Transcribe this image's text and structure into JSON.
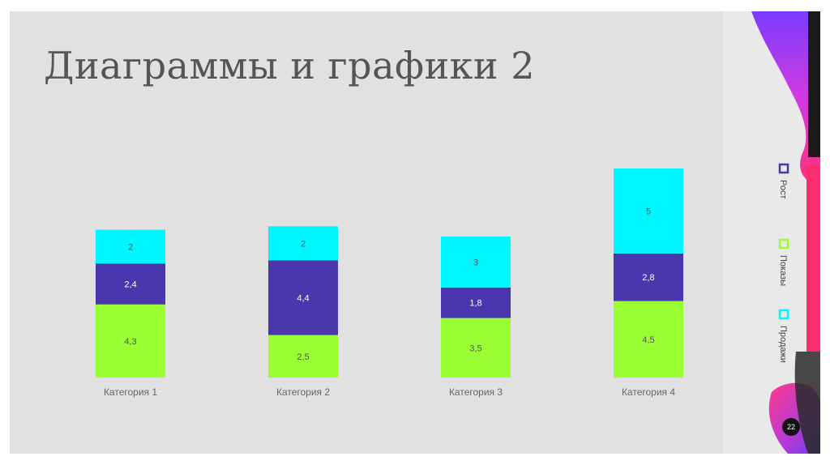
{
  "slide": {
    "title": "Диаграммы и графики 2",
    "page_number": "22"
  },
  "colors": {
    "background": "#e1e1e1",
    "title": "#555555",
    "rost": "#4b37ad",
    "pokazy": "#99ff33",
    "prodazhi": "#00f7ff",
    "label": "#555555"
  },
  "chart_data": {
    "type": "bar",
    "stacked": true,
    "categories": [
      "Категория 1",
      "Категория 2",
      "Категория 3",
      "Категория 4"
    ],
    "series": [
      {
        "name": "Показы",
        "values": [
          4.3,
          2.5,
          3.5,
          4.5
        ],
        "labels": [
          "4,3",
          "2,5",
          "3,5",
          "4,5"
        ],
        "color": "#99ff33"
      },
      {
        "name": "Рост",
        "values": [
          2.4,
          4.4,
          1.8,
          2.8
        ],
        "labels": [
          "2,4",
          "4,4",
          "1,8",
          "2,8"
        ],
        "color": "#4b37ad"
      },
      {
        "name": "Продажи",
        "values": [
          2,
          2,
          3,
          5
        ],
        "labels": [
          "2",
          "2",
          "3",
          "5"
        ],
        "color": "#00f7ff"
      }
    ],
    "legend": {
      "placement": "right",
      "orientation": "vertical-rotated",
      "entries": [
        "Рост",
        "Показы",
        "Продажи"
      ]
    },
    "ylim": [
      0,
      12.3
    ],
    "grid": false
  }
}
